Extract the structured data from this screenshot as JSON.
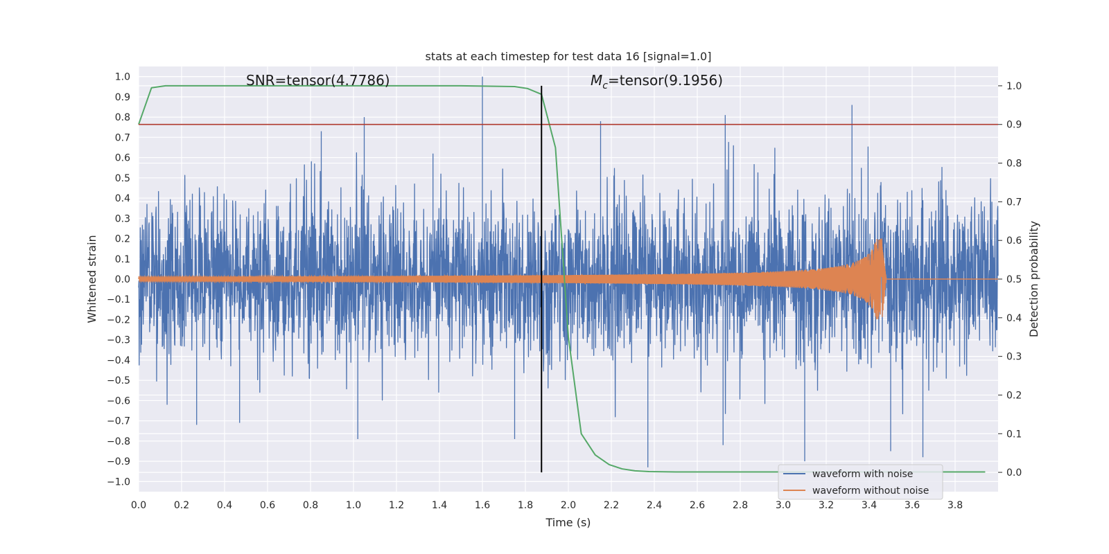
{
  "chart_data": {
    "type": "line",
    "title": "stats at each timestep for test data 16 [signal=1.0]",
    "xlabel": "Time (s)",
    "ylabel": "Whitened strain",
    "y2label": "Detection probability",
    "xlim": [
      0.0,
      4.0
    ],
    "ylim": [
      -1.05,
      1.05
    ],
    "y2lim": [
      -0.05,
      1.05
    ],
    "x_ticks": [
      "0.0",
      "0.2",
      "0.4",
      "0.6",
      "0.8",
      "1.0",
      "1.2",
      "1.4",
      "1.6",
      "1.8",
      "2.0",
      "2.2",
      "2.4",
      "2.6",
      "2.8",
      "3.0",
      "3.2",
      "3.4",
      "3.6",
      "3.8"
    ],
    "y_ticks": [
      "1.0",
      "0.9",
      "0.8",
      "0.7",
      "0.6",
      "0.5",
      "0.4",
      "0.3",
      "0.2",
      "0.1",
      "0.0",
      "−0.1",
      "−0.2",
      "−0.3",
      "−0.4",
      "−0.5",
      "−0.6",
      "−0.7",
      "−0.8",
      "−0.9",
      "−1.0"
    ],
    "y2_ticks": [
      "1.0",
      "0.9",
      "0.8",
      "0.7",
      "0.6",
      "0.5",
      "0.4",
      "0.3",
      "0.2",
      "0.1",
      "0.0"
    ],
    "grid": true,
    "legend_position": "lower-right",
    "annotations": {
      "snr_text": "SNR=tensor(4.7786)",
      "mc_prefix": "M",
      "mc_sub": "c",
      "mc_rest": "=tensor(9.1956)"
    },
    "threshold_line": {
      "y2": 0.9,
      "color": "#b03a2e"
    },
    "marker_line": {
      "x": 1.875,
      "y2_range": [
        0.0,
        1.0
      ],
      "color": "#000000"
    },
    "series": [
      {
        "name": "waveform with noise",
        "color": "#4c72b0",
        "axis": "left",
        "description_note": "dense noisy strain, amplitude mostly within ±0.6, peaks reaching 1.0 at 1.6 s",
        "spikes": [
          [
            0.27,
            -0.72
          ],
          [
            0.47,
            -0.71
          ],
          [
            0.85,
            0.73
          ],
          [
            1.02,
            -0.79
          ],
          [
            1.05,
            0.8
          ],
          [
            1.37,
            0.62
          ],
          [
            1.6,
            1.0
          ],
          [
            1.75,
            -0.79
          ],
          [
            2.15,
            0.78
          ],
          [
            2.37,
            -0.93
          ],
          [
            2.73,
            0.81
          ],
          [
            2.72,
            -0.82
          ],
          [
            3.1,
            -0.9
          ],
          [
            3.32,
            0.86
          ],
          [
            3.5,
            -0.85
          ],
          [
            3.65,
            -0.88
          ]
        ]
      },
      {
        "name": "waveform without noise",
        "color": "#dd8452",
        "axis": "left",
        "chirp": {
          "start_amp": 0.012,
          "peak_amp": 0.2,
          "merger_time": 3.46,
          "end_time": 3.48
        }
      },
      {
        "name": "",
        "color": "#55a868",
        "axis": "right",
        "x": [
          0.0,
          0.06,
          0.125,
          0.25,
          0.5,
          1.0,
          1.5,
          1.75,
          1.81,
          1.875,
          1.94,
          2.0,
          2.06,
          2.125,
          2.19,
          2.25,
          2.31,
          2.375,
          2.5,
          3.0,
          3.5,
          3.94
        ],
        "y": [
          0.9,
          0.995,
          1.0,
          1.0,
          1.0,
          1.0,
          1.0,
          0.998,
          0.993,
          0.978,
          0.84,
          0.35,
          0.1,
          0.045,
          0.02,
          0.009,
          0.004,
          0.002,
          0.001,
          0.001,
          0.001,
          0.001
        ]
      }
    ]
  }
}
